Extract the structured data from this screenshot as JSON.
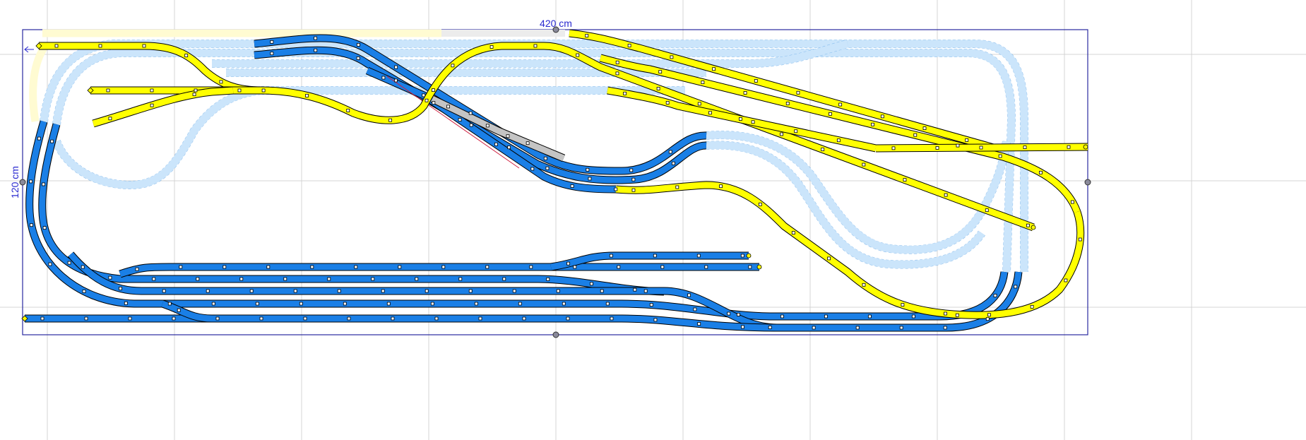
{
  "board": {
    "width_label": "420 cm",
    "height_label": "120 cm"
  },
  "colors": {
    "board_outline": "#2a2aa0",
    "track_level_1": "#1a7fe6",
    "track_level_2": "#ffff00",
    "hidden_track": "#cbe5fb",
    "hidden_track_yellow": "#fffbd2",
    "selected_track": "#c4c4c4",
    "grid": "#d4d4d4"
  },
  "icons": [
    "resize-handle-icon",
    "origin-arrow-icon",
    "track-end-diamond-icon"
  ]
}
